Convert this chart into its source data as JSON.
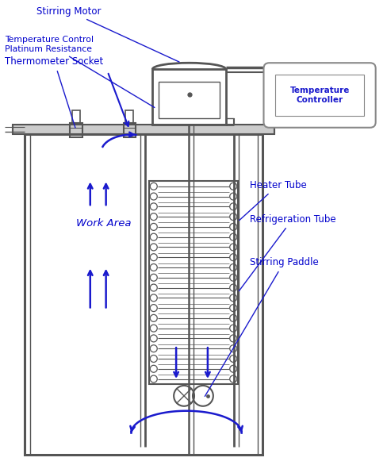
{
  "bg_color": "#ffffff",
  "dc": "#555555",
  "bc": "#1a1acd",
  "lc": "#0000cc",
  "labels": {
    "stirring_motor": "Stirring Motor",
    "temp_control": "Temperature Control\nPlatinum Resistance",
    "thermometer_socket": "Thermometer Socket",
    "heater_tube": "Heater Tube",
    "refrigeration_tube": "Refrigeration Tube",
    "stirring_paddle": "Stirring Paddle",
    "work_area": "Work Area",
    "temp_controller": "Temperature\nController"
  },
  "figsize": [
    4.88,
    5.91
  ],
  "dpi": 100
}
